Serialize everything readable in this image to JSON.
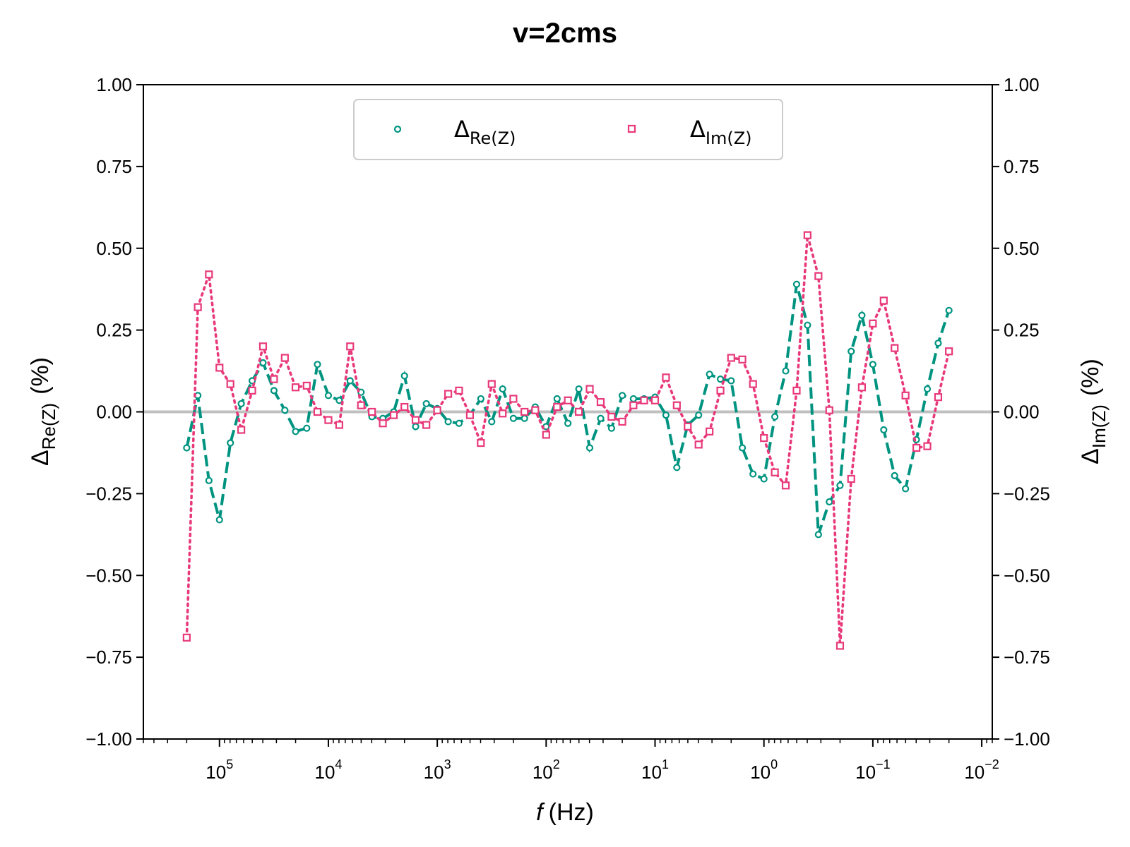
{
  "chart_data": {
    "type": "line",
    "title": "v=2cms",
    "xlabel": {
      "var": "f",
      "unit": "(Hz)"
    },
    "ylabel_left": {
      "sym": "Δ",
      "sub": "Re(Z)",
      "unit": "(%)"
    },
    "ylabel_right": {
      "sym": "Δ",
      "sub": "Im(Z)",
      "unit": "(%)"
    },
    "x_scale": "log",
    "x_reversed": true,
    "xlim": [
      500000,
      0.008
    ],
    "x_major_ticks": [
      {
        "value": 100000,
        "base": "10",
        "exp": "5"
      },
      {
        "value": 10000,
        "base": "10",
        "exp": "4"
      },
      {
        "value": 1000,
        "base": "10",
        "exp": "3"
      },
      {
        "value": 100,
        "base": "10",
        "exp": "2"
      },
      {
        "value": 10,
        "base": "10",
        "exp": "1"
      },
      {
        "value": 1,
        "base": "10",
        "exp": "0"
      },
      {
        "value": 0.1,
        "base": "10",
        "exp": "−1"
      },
      {
        "value": 0.01,
        "base": "10",
        "exp": "−2"
      }
    ],
    "ylim": [
      -1.0,
      1.0
    ],
    "y_ticks": [
      {
        "value": 1.0,
        "label": "1.00"
      },
      {
        "value": 0.75,
        "label": "0.75"
      },
      {
        "value": 0.5,
        "label": "0.50"
      },
      {
        "value": 0.25,
        "label": "0.25"
      },
      {
        "value": 0.0,
        "label": "0.00"
      },
      {
        "value": -0.25,
        "label": "−0.25"
      },
      {
        "value": -0.5,
        "label": "−0.50"
      },
      {
        "value": -0.75,
        "label": "−0.75"
      },
      {
        "value": -1.0,
        "label": "−1.00"
      }
    ],
    "zero_line": true,
    "legend": {
      "placement": "top-center"
    },
    "x": [
      200000,
      158000,
      125000,
      100000,
      79400,
      63100,
      50100,
      39800,
      31600,
      25100,
      20000,
      15800,
      12600,
      10000,
      7940,
      6310,
      5010,
      3980,
      3160,
      2510,
      2000,
      1580,
      1260,
      1000,
      794,
      631,
      501,
      398,
      316,
      251,
      200,
      158,
      126,
      100,
      79.4,
      63.1,
      50.1,
      39.8,
      31.6,
      25.1,
      20,
      15.8,
      12.6,
      10,
      7.94,
      6.31,
      5.01,
      3.98,
      3.16,
      2.51,
      2,
      1.58,
      1.26,
      1,
      0.794,
      0.631,
      0.501,
      0.398,
      0.316,
      0.251,
      0.2,
      0.158,
      0.126,
      0.1,
      0.0794,
      0.0631,
      0.0501,
      0.0398,
      0.0316,
      0.0251,
      0.02
    ],
    "series": [
      {
        "name": "Re(Z)",
        "color": "#009480",
        "marker": "circle",
        "line": "dashed",
        "values": [
          -0.11,
          0.05,
          -0.21,
          -0.33,
          -0.095,
          0.025,
          0.095,
          0.15,
          0.065,
          0.005,
          -0.06,
          -0.05,
          0.145,
          0.05,
          0.035,
          0.095,
          0.06,
          -0.015,
          -0.02,
          0.0,
          0.11,
          -0.045,
          0.025,
          0.01,
          -0.03,
          -0.035,
          -0.01,
          0.04,
          -0.03,
          0.07,
          -0.02,
          -0.02,
          0.015,
          -0.045,
          0.04,
          -0.035,
          0.07,
          -0.11,
          -0.02,
          -0.05,
          0.05,
          0.04,
          0.04,
          0.045,
          -0.01,
          -0.17,
          -0.04,
          -0.01,
          0.115,
          0.1,
          0.095,
          -0.11,
          -0.19,
          -0.205,
          -0.015,
          0.125,
          0.39,
          0.265,
          -0.375,
          -0.275,
          -0.225,
          0.185,
          0.295,
          0.145,
          -0.055,
          -0.195,
          -0.235,
          -0.085,
          0.07,
          0.21,
          0.31
        ]
      },
      {
        "name": "Im(Z)",
        "color": "#e8397a",
        "marker": "square",
        "line": "dotted",
        "values": [
          -0.69,
          0.32,
          0.42,
          0.135,
          0.085,
          -0.055,
          0.065,
          0.2,
          0.1,
          0.165,
          0.075,
          0.08,
          0.0,
          -0.025,
          -0.04,
          0.2,
          0.02,
          0.0,
          -0.035,
          -0.01,
          0.015,
          -0.025,
          -0.04,
          0.005,
          0.055,
          0.065,
          -0.01,
          -0.095,
          0.085,
          -0.005,
          0.04,
          0.0,
          0.005,
          -0.07,
          0.015,
          0.035,
          0.0,
          0.07,
          0.03,
          -0.015,
          -0.03,
          0.02,
          0.035,
          0.035,
          0.105,
          0.02,
          -0.045,
          -0.1,
          -0.06,
          0.065,
          0.165,
          0.16,
          0.085,
          -0.08,
          -0.185,
          -0.225,
          0.065,
          0.54,
          0.415,
          0.005,
          -0.715,
          -0.205,
          0.075,
          0.27,
          0.34,
          0.195,
          0.05,
          -0.11,
          -0.105,
          0.045,
          0.185
        ]
      }
    ]
  }
}
